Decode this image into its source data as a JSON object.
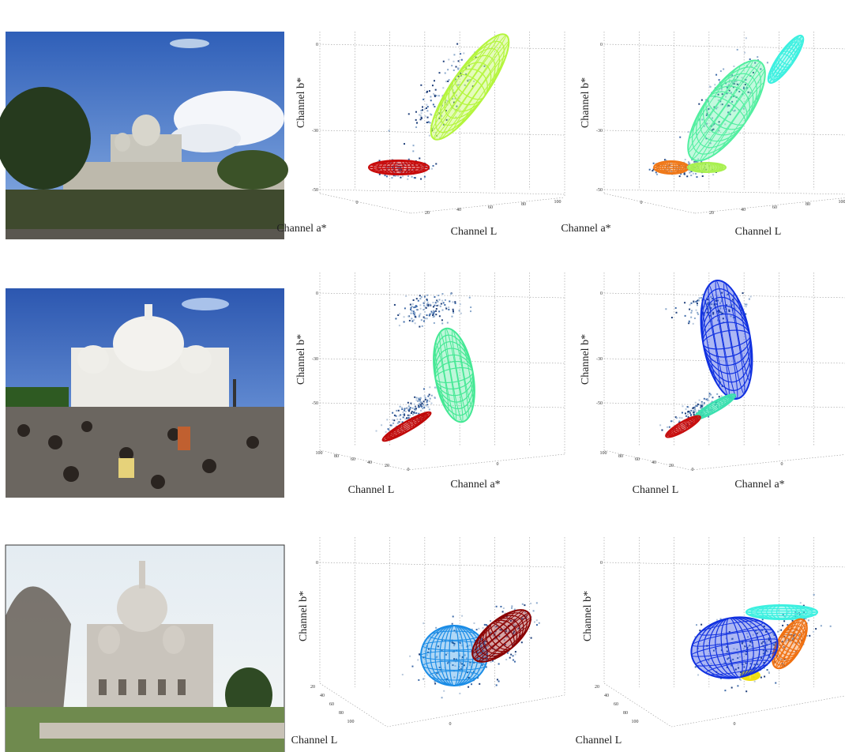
{
  "rows": [
    {
      "plots": [
        {
          "y_label": "Channel b*",
          "x_label": "Channel a*",
          "z_label": "Channel L",
          "left_ticks": [
            "0",
            "-30",
            "-50"
          ],
          "bottom_ticks": [
            "0",
            "20",
            "40",
            "60",
            "80",
            "100"
          ]
        },
        {
          "y_label": "Channel b*",
          "x_label": "Channel a*",
          "z_label": "Channel L",
          "left_ticks": [
            "0",
            "-30",
            "-50"
          ],
          "bottom_ticks": [
            "0",
            "20",
            "40",
            "60",
            "80",
            "100"
          ]
        }
      ]
    },
    {
      "plots": [
        {
          "y_label": "Channel b*",
          "x_label": "Channel a*",
          "z_label": "Channel L",
          "left_ticks": [
            "0",
            "-30",
            "-50"
          ],
          "bottom_ticks": [
            "100",
            "80",
            "60",
            "40",
            "20",
            "0",
            "0"
          ]
        },
        {
          "y_label": "Channel b*",
          "x_label": "Channel a*",
          "z_label": "Channel L",
          "left_ticks": [
            "0",
            "-30",
            "-50"
          ],
          "bottom_ticks": [
            "100",
            "80",
            "60",
            "40",
            "20",
            "0",
            "0"
          ]
        }
      ]
    },
    {
      "plots": [
        {
          "y_label": "Channel b*",
          "z_label": "Channel L",
          "left_ticks": [
            "0"
          ],
          "bottom_ticks": [
            "20",
            "40",
            "60",
            "80",
            "100",
            "0"
          ]
        },
        {
          "y_label": "Channel b*",
          "z_label": "Channel L",
          "left_ticks": [
            "0"
          ],
          "bottom_ticks": [
            "20",
            "40",
            "60",
            "80",
            "100",
            "0"
          ]
        }
      ]
    }
  ]
}
